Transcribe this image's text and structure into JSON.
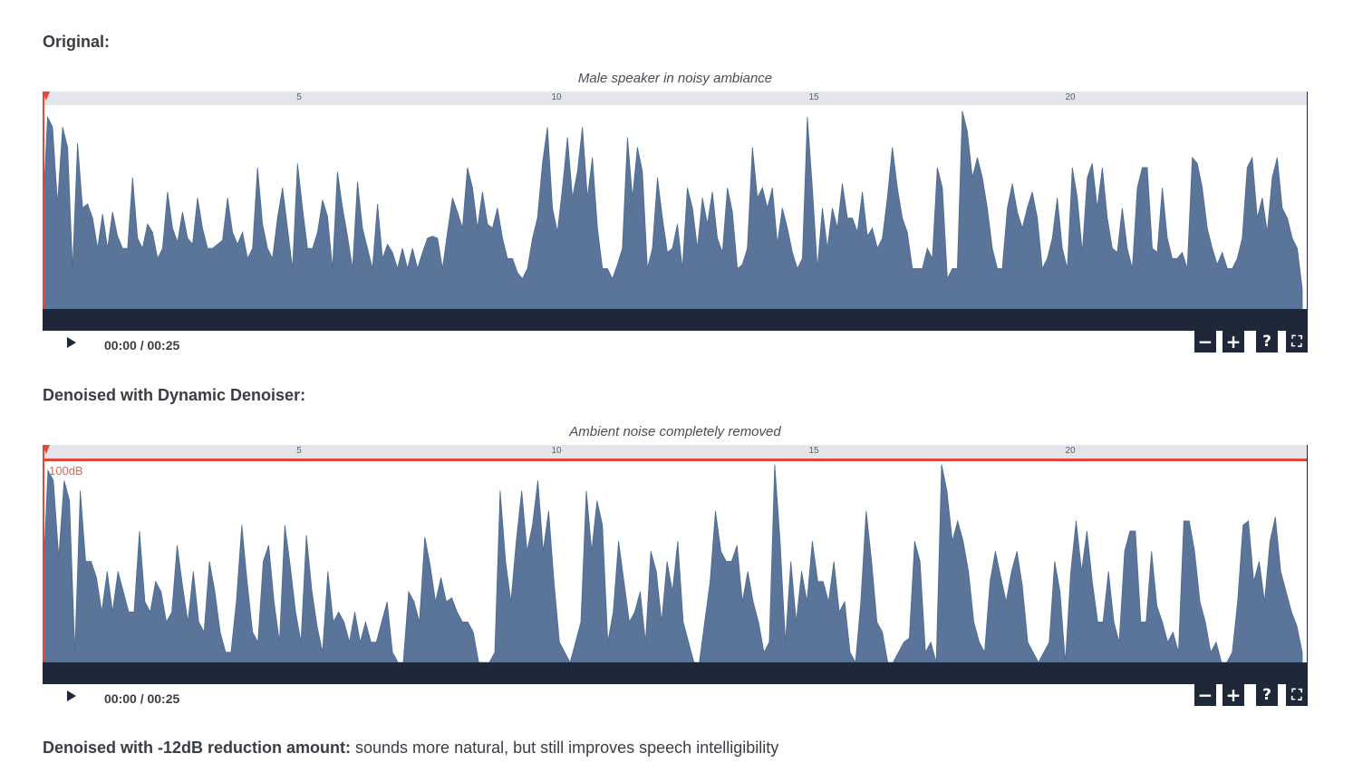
{
  "sections": [
    {
      "title": "Original:",
      "caption": "Male speaker in noisy ambiance",
      "time": "00:00 / 00:25",
      "db_label": "",
      "waveform": [
        0.45,
        0.95,
        0.9,
        0.52,
        0.9,
        0.8,
        0.2,
        0.82,
        0.5,
        0.52,
        0.45,
        0.3,
        0.47,
        0.3,
        0.48,
        0.36,
        0.3,
        0.3,
        0.65,
        0.35,
        0.3,
        0.42,
        0.38,
        0.25,
        0.3,
        0.58,
        0.4,
        0.33,
        0.48,
        0.35,
        0.32,
        0.55,
        0.4,
        0.3,
        0.3,
        0.32,
        0.34,
        0.55,
        0.38,
        0.32,
        0.38,
        0.25,
        0.3,
        0.7,
        0.42,
        0.3,
        0.25,
        0.45,
        0.6,
        0.4,
        0.2,
        0.72,
        0.5,
        0.3,
        0.3,
        0.38,
        0.54,
        0.46,
        0.2,
        0.68,
        0.5,
        0.36,
        0.2,
        0.63,
        0.4,
        0.3,
        0.2,
        0.52,
        0.25,
        0.32,
        0.28,
        0.2,
        0.3,
        0.2,
        0.3,
        0.2,
        0.28,
        0.35,
        0.36,
        0.35,
        0.2,
        0.38,
        0.55,
        0.48,
        0.4,
        0.7,
        0.6,
        0.4,
        0.58,
        0.42,
        0.4,
        0.5,
        0.35,
        0.25,
        0.25,
        0.18,
        0.15,
        0.2,
        0.35,
        0.45,
        0.72,
        0.9,
        0.5,
        0.38,
        0.6,
        0.85,
        0.55,
        0.68,
        0.9,
        0.55,
        0.75,
        0.4,
        0.2,
        0.2,
        0.15,
        0.22,
        0.3,
        0.85,
        0.55,
        0.8,
        0.68,
        0.2,
        0.3,
        0.65,
        0.45,
        0.28,
        0.3,
        0.42,
        0.2,
        0.6,
        0.5,
        0.3,
        0.55,
        0.42,
        0.58,
        0.35,
        0.28,
        0.6,
        0.48,
        0.2,
        0.22,
        0.3,
        0.8,
        0.55,
        0.6,
        0.5,
        0.6,
        0.32,
        0.5,
        0.4,
        0.28,
        0.2,
        0.25,
        0.95,
        0.6,
        0.2,
        0.5,
        0.3,
        0.5,
        0.4,
        0.62,
        0.45,
        0.45,
        0.38,
        0.58,
        0.36,
        0.4,
        0.3,
        0.35,
        0.55,
        0.8,
        0.6,
        0.45,
        0.38,
        0.2,
        0.2,
        0.2,
        0.3,
        0.25,
        0.7,
        0.6,
        0.15,
        0.2,
        0.2,
        0.98,
        0.88,
        0.65,
        0.75,
        0.65,
        0.5,
        0.3,
        0.2,
        0.2,
        0.5,
        0.62,
        0.48,
        0.4,
        0.5,
        0.58,
        0.45,
        0.2,
        0.25,
        0.35,
        0.55,
        0.3,
        0.2,
        0.7,
        0.55,
        0.28,
        0.65,
        0.72,
        0.5,
        0.7,
        0.45,
        0.3,
        0.28,
        0.5,
        0.3,
        0.2,
        0.6,
        0.7,
        0.7,
        0.3,
        0.28,
        0.6,
        0.35,
        0.25,
        0.25,
        0.28,
        0.2,
        0.75,
        0.72,
        0.6,
        0.4,
        0.3,
        0.22,
        0.28,
        0.2,
        0.2,
        0.25,
        0.35,
        0.7,
        0.75,
        0.45,
        0.55,
        0.38,
        0.65,
        0.75,
        0.5,
        0.45,
        0.35,
        0.3,
        0.1
      ]
    },
    {
      "title": "Denoised with Dynamic Denoiser:",
      "caption": "Ambient noise completely removed",
      "time": "00:00 / 00:25",
      "db_label": "100dB",
      "waveform": [
        0.35,
        0.95,
        0.9,
        0.52,
        0.9,
        0.8,
        0.05,
        0.85,
        0.5,
        0.5,
        0.42,
        0.25,
        0.45,
        0.25,
        0.45,
        0.35,
        0.25,
        0.25,
        0.65,
        0.3,
        0.25,
        0.4,
        0.35,
        0.2,
        0.25,
        0.58,
        0.38,
        0.2,
        0.45,
        0.2,
        0.15,
        0.5,
        0.35,
        0.15,
        0.05,
        0.05,
        0.3,
        0.68,
        0.4,
        0.15,
        0.1,
        0.5,
        0.58,
        0.3,
        0.1,
        0.68,
        0.48,
        0.25,
        0.1,
        0.63,
        0.36,
        0.18,
        0.05,
        0.45,
        0.2,
        0.25,
        0.2,
        0.1,
        0.25,
        0.1,
        0.2,
        0.1,
        0.1,
        0.2,
        0.3,
        0.05,
        0.0,
        0.0,
        0.35,
        0.3,
        0.2,
        0.62,
        0.48,
        0.3,
        0.42,
        0.3,
        0.32,
        0.25,
        0.2,
        0.2,
        0.15,
        0.0,
        0.0,
        0.0,
        0.05,
        0.85,
        0.5,
        0.3,
        0.6,
        0.85,
        0.55,
        0.68,
        0.9,
        0.55,
        0.75,
        0.4,
        0.1,
        0.05,
        0.0,
        0.1,
        0.2,
        0.85,
        0.55,
        0.8,
        0.68,
        0.1,
        0.25,
        0.6,
        0.4,
        0.2,
        0.25,
        0.35,
        0.1,
        0.55,
        0.45,
        0.2,
        0.5,
        0.35,
        0.6,
        0.2,
        0.1,
        0.0,
        0.0,
        0.2,
        0.4,
        0.75,
        0.55,
        0.5,
        0.5,
        0.58,
        0.3,
        0.45,
        0.3,
        0.2,
        0.05,
        0.1,
        0.98,
        0.6,
        0.1,
        0.5,
        0.2,
        0.45,
        0.3,
        0.6,
        0.4,
        0.4,
        0.3,
        0.5,
        0.25,
        0.3,
        0.05,
        0.0,
        0.3,
        0.75,
        0.5,
        0.2,
        0.15,
        0.0,
        0.0,
        0.05,
        0.1,
        0.12,
        0.6,
        0.5,
        0.05,
        0.1,
        0.0,
        0.98,
        0.85,
        0.6,
        0.7,
        0.6,
        0.45,
        0.2,
        0.1,
        0.05,
        0.4,
        0.55,
        0.42,
        0.3,
        0.45,
        0.55,
        0.38,
        0.1,
        0.05,
        0.0,
        0.05,
        0.1,
        0.5,
        0.35,
        0.0,
        0.45,
        0.7,
        0.45,
        0.65,
        0.4,
        0.2,
        0.2,
        0.45,
        0.2,
        0.1,
        0.55,
        0.65,
        0.65,
        0.2,
        0.2,
        0.55,
        0.28,
        0.2,
        0.1,
        0.15,
        0.05,
        0.7,
        0.7,
        0.55,
        0.3,
        0.2,
        0.05,
        0.1,
        0.0,
        0.0,
        0.05,
        0.3,
        0.68,
        0.7,
        0.4,
        0.5,
        0.3,
        0.6,
        0.72,
        0.45,
        0.35,
        0.25,
        0.18,
        0.05
      ]
    }
  ],
  "timeline": {
    "ticks": [
      "5",
      "10",
      "15",
      "20"
    ],
    "tick_seconds": [
      5,
      10,
      15,
      20
    ],
    "duration_seconds": 25
  },
  "controls": {
    "zoom_out": "−",
    "zoom_in": "+",
    "help": "?",
    "fullscreen": "⛶"
  },
  "footer": {
    "bold": "Denoised with -12dB reduction amount:",
    "rest": " sounds more natural, but still improves speech intelligibility"
  },
  "colors": {
    "waveform_fill": "#5a7599",
    "control_bar": "#1f2838",
    "playhead": "#e04a3a",
    "timeline_bg": "#e3e5ea"
  }
}
